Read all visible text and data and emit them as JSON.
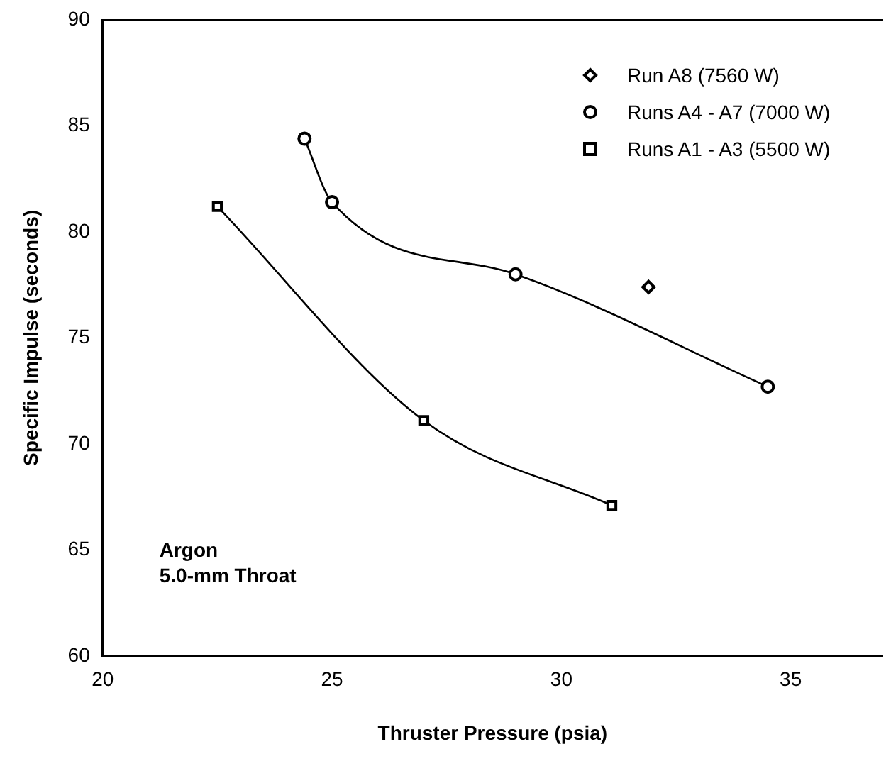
{
  "chart_data": {
    "type": "line",
    "xlabel": "Thruster Pressure (psia)",
    "ylabel": "Specific Impulse (seconds)",
    "xlim": [
      20,
      37
    ],
    "xticks": [
      20,
      25,
      30,
      35
    ],
    "ylim": [
      60,
      90
    ],
    "yticks": [
      60,
      65,
      70,
      75,
      80,
      85,
      90
    ],
    "grid": false,
    "legend": "top right",
    "annotations": [
      "Argon\n5.0-mm Throat"
    ],
    "series": [
      {
        "name": "Run A8 (7560 W)",
        "type": "scatter",
        "marker": "diamond",
        "color": "#000000",
        "x": [
          31.9
        ],
        "values": [
          77.4
        ]
      },
      {
        "name": "Runs A4 - A7 (7000 W)",
        "type": "line",
        "marker": "circle",
        "color": "#000000",
        "x": [
          24.4,
          25.0,
          29.0,
          34.5
        ],
        "values": [
          84.4,
          81.4,
          78.0,
          72.7
        ]
      },
      {
        "name": "Runs A1 - A3 (5500 W)",
        "type": "line",
        "marker": "square",
        "color": "#000000",
        "x": [
          22.5,
          27.0,
          31.1
        ],
        "values": [
          81.2,
          71.1,
          67.1
        ]
      }
    ]
  }
}
